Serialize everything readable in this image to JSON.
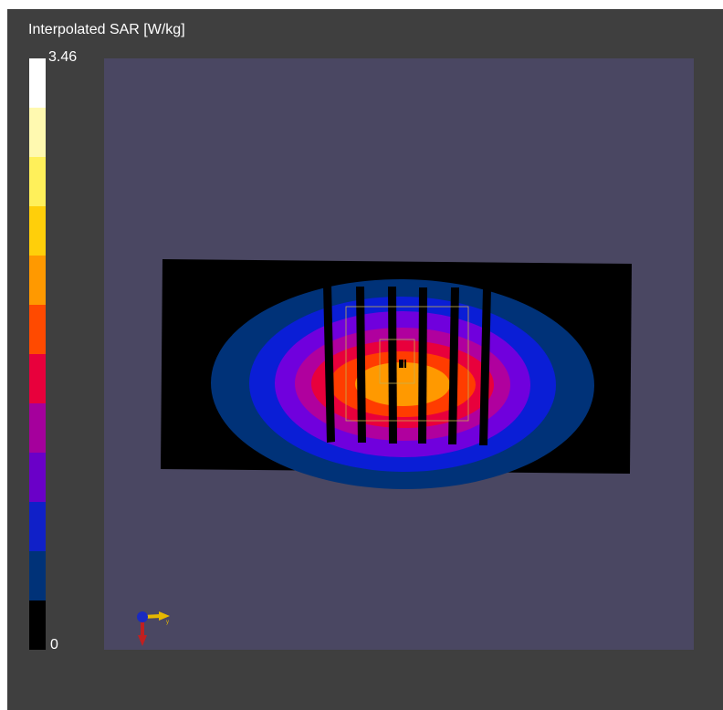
{
  "legend": {
    "title": "Interpolated SAR [W/kg]",
    "max_label": "3.46",
    "min_label": "0",
    "colors": [
      "#ffffff",
      "#fff9b0",
      "#fff05a",
      "#ffcf0a",
      "#ff9900",
      "#ff4a00",
      "#e8003c",
      "#a5009c",
      "#6a00c8",
      "#1020c8",
      "#003278",
      "#000000"
    ]
  },
  "field_colors": {
    "level_0": "#000000",
    "level_1": "#003278",
    "level_2": "#0a1ed6",
    "level_3": "#7000dd",
    "level_4": "#b0009e",
    "level_5": "#e8003c",
    "level_6": "#ff3c00",
    "level_7": "#ff9900"
  },
  "viewport": {
    "background": "#4a4762"
  },
  "axis_triad": {
    "y_label": "y"
  }
}
